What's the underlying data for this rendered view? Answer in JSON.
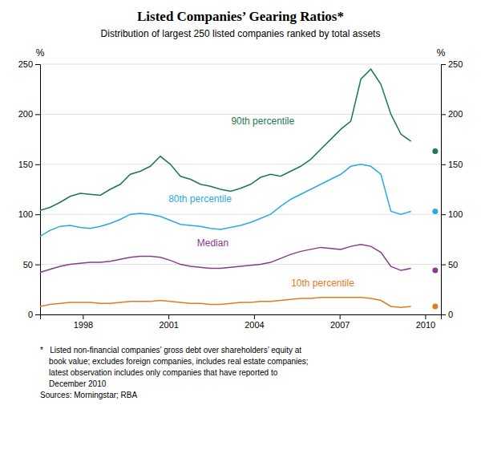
{
  "chart_data": {
    "type": "line",
    "title": "Listed Companies’ Gearing Ratios*",
    "subtitle": "Distribution of largest 250 listed companies ranked by total assets",
    "ylabel": "%",
    "y2label": "%",
    "xlim": [
      1996.5,
      2010.55
    ],
    "xticks": [
      1998,
      2001,
      2004,
      2007,
      2010
    ],
    "ylim": [
      0,
      250
    ],
    "yticks": [
      0,
      50,
      100,
      150,
      200,
      250
    ],
    "y2lim": [
      0,
      250
    ],
    "y2ticks": [
      0,
      50,
      100,
      150,
      200,
      250
    ],
    "grid": true,
    "x": [
      1996.5,
      1996.8514,
      1997.2027,
      1997.5541,
      1997.9054,
      1998.2568,
      1998.6081,
      1998.9595,
      1999.3108,
      1999.6622,
      2000.0135,
      2000.3649,
      2000.7162,
      2001.0676,
      2001.4189,
      2001.7703,
      2002.1216,
      2002.473,
      2002.8243,
      2003.1757,
      2003.527,
      2003.8784,
      2004.2297,
      2004.5811,
      2004.9324,
      2005.2838,
      2005.6351,
      2005.9865,
      2006.3378,
      2006.6892,
      2007.0405,
      2007.3919,
      2007.7432,
      2008.0946,
      2008.4459,
      2008.7973,
      2009.1486,
      2009.5
    ],
    "series": [
      {
        "type": "line",
        "color": "#1a7a4a",
        "values": [
          104,
          107,
          112,
          118,
          121,
          120,
          119,
          125,
          130,
          140,
          143,
          148,
          158,
          150,
          138,
          135,
          130,
          128,
          125,
          123,
          126,
          130,
          137,
          140,
          138,
          143,
          148,
          155,
          165,
          175,
          185,
          193,
          235,
          245,
          230,
          200,
          180,
          173
        ]
      },
      {
        "type": "line",
        "color": "#29abe2",
        "values": [
          78,
          84,
          88,
          89,
          87,
          86,
          88,
          91,
          95,
          100,
          101,
          100,
          98,
          94,
          90,
          89,
          88,
          86,
          85,
          87,
          89,
          92,
          96,
          100,
          108,
          115,
          120,
          125,
          130,
          135,
          140,
          148,
          150,
          148,
          140,
          103,
          100,
          103
        ]
      },
      {
        "type": "line",
        "color": "#8b3a8b",
        "values": [
          42,
          45,
          48,
          50,
          51,
          52,
          52,
          53,
          55,
          57,
          58,
          58,
          57,
          54,
          50,
          48,
          47,
          46,
          46,
          47,
          48,
          49,
          50,
          52,
          56,
          60,
          63,
          65,
          67,
          66,
          65,
          68,
          70,
          68,
          62,
          48,
          44,
          46
        ]
      },
      {
        "type": "line",
        "color": "#e07b20",
        "values": [
          8,
          10,
          11,
          12,
          12,
          12,
          11,
          11,
          12,
          13,
          13,
          13,
          14,
          13,
          12,
          11,
          11,
          10,
          10,
          11,
          12,
          12,
          13,
          13,
          14,
          15,
          16,
          16,
          17,
          17,
          17,
          17,
          17,
          16,
          14,
          8,
          7,
          8
        ]
      },
      {
        "type": "scatter",
        "color": "#1a7a4a",
        "x": [
          2010.35
        ],
        "values": [
          163
        ]
      },
      {
        "type": "scatter",
        "color": "#29abe2",
        "x": [
          2010.35
        ],
        "values": [
          103
        ]
      },
      {
        "type": "scatter",
        "color": "#8b3a8b",
        "x": [
          2010.35
        ],
        "values": [
          44
        ]
      },
      {
        "type": "scatter",
        "color": "#e07b20",
        "x": [
          2010.35
        ],
        "values": [
          8
        ]
      }
    ],
    "annotations": [
      {
        "text": "90th percentile",
        "x": 2003.2,
        "y": 190,
        "color": "#1a7a4a"
      },
      {
        "text": "80th percentile",
        "x": 2001.0,
        "y": 112,
        "color": "#29abe2"
      },
      {
        "text": "Median",
        "x": 2002.0,
        "y": 68,
        "color": "#8b3a8b"
      },
      {
        "text": "10th percentile",
        "x": 2005.3,
        "y": 28,
        "color": "#e07b20"
      }
    ],
    "notes": [
      "*   Listed non-financial companies’ gross debt over shareholders’ equity at",
      "    book value; excludes foreign companies, includes real estate companies;",
      "    latest observation includes only companies that have reported to",
      "    December 2010"
    ],
    "source": "Sources: Morningstar; RBA"
  }
}
